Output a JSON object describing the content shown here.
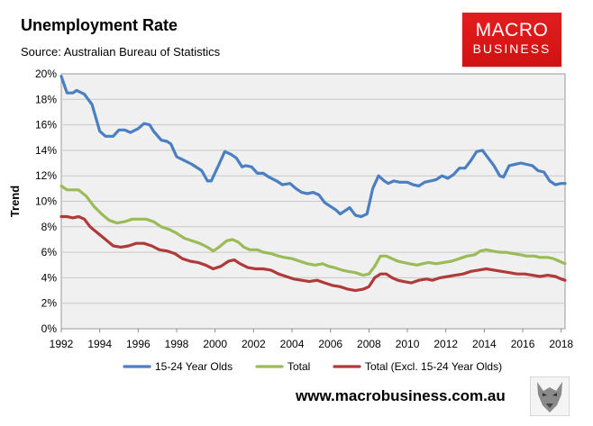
{
  "header": {
    "title": "Unemployment Rate",
    "source": "Source: Australian Bureau of Statistics"
  },
  "logo": {
    "line1": "MACRO",
    "line2": "BUSINESS"
  },
  "footer": {
    "url": "www.macrobusiness.com.au"
  },
  "colors": {
    "series_youth": "#4a7fc1",
    "series_total": "#9bbb59",
    "series_excl": "#b03a3a",
    "plot_bg": "#f0f0f0",
    "logo_red": "#e31d1d"
  },
  "chart_data": {
    "type": "line",
    "title": "Unemployment Rate",
    "xlabel": "",
    "ylabel": "Trend",
    "xlim": [
      1992,
      2018.2
    ],
    "ylim": [
      0,
      20
    ],
    "x_ticks": [
      "1992",
      "1994",
      "1996",
      "1998",
      "2000",
      "2002",
      "2004",
      "2006",
      "2008",
      "2010",
      "2012",
      "2014",
      "2016",
      "2018"
    ],
    "y_ticks": [
      "0%",
      "2%",
      "4%",
      "6%",
      "8%",
      "10%",
      "12%",
      "14%",
      "16%",
      "18%",
      "20%"
    ],
    "grid": true,
    "legend_position": "bottom",
    "series": [
      {
        "name": "15-24 Year Olds",
        "color_key": "series_youth",
        "points": [
          [
            1992,
            19.8
          ],
          [
            1992.3,
            18.5
          ],
          [
            1992.6,
            18.5
          ],
          [
            1992.8,
            18.7
          ],
          [
            1993.2,
            18.4
          ],
          [
            1993.6,
            17.6
          ],
          [
            1994.0,
            15.5
          ],
          [
            1994.3,
            15.1
          ],
          [
            1994.7,
            15.1
          ],
          [
            1995.0,
            15.6
          ],
          [
            1995.3,
            15.6
          ],
          [
            1995.6,
            15.4
          ],
          [
            1996.0,
            15.7
          ],
          [
            1996.3,
            16.1
          ],
          [
            1996.6,
            16.0
          ],
          [
            1996.8,
            15.5
          ],
          [
            1997.2,
            14.8
          ],
          [
            1997.5,
            14.7
          ],
          [
            1997.7,
            14.5
          ],
          [
            1998.0,
            13.5
          ],
          [
            1998.4,
            13.2
          ],
          [
            1998.8,
            12.9
          ],
          [
            1999.3,
            12.4
          ],
          [
            1999.6,
            11.6
          ],
          [
            1999.8,
            11.6
          ],
          [
            2000.2,
            12.9
          ],
          [
            2000.5,
            13.9
          ],
          [
            2000.8,
            13.7
          ],
          [
            2001.1,
            13.4
          ],
          [
            2001.4,
            12.7
          ],
          [
            2001.6,
            12.8
          ],
          [
            2001.9,
            12.7
          ],
          [
            2002.2,
            12.2
          ],
          [
            2002.5,
            12.2
          ],
          [
            2002.8,
            11.9
          ],
          [
            2003.2,
            11.6
          ],
          [
            2003.5,
            11.3
          ],
          [
            2003.9,
            11.4
          ],
          [
            2004.2,
            11.0
          ],
          [
            2004.5,
            10.7
          ],
          [
            2004.8,
            10.6
          ],
          [
            2005.1,
            10.7
          ],
          [
            2005.4,
            10.5
          ],
          [
            2005.7,
            9.9
          ],
          [
            2006.0,
            9.6
          ],
          [
            2006.3,
            9.3
          ],
          [
            2006.5,
            9.0
          ],
          [
            2006.8,
            9.3
          ],
          [
            2007.0,
            9.5
          ],
          [
            2007.3,
            8.9
          ],
          [
            2007.6,
            8.8
          ],
          [
            2007.9,
            9.0
          ],
          [
            2008.2,
            11.0
          ],
          [
            2008.5,
            12.0
          ],
          [
            2008.8,
            11.6
          ],
          [
            2009.0,
            11.4
          ],
          [
            2009.3,
            11.6
          ],
          [
            2009.6,
            11.5
          ],
          [
            2010.0,
            11.5
          ],
          [
            2010.3,
            11.3
          ],
          [
            2010.6,
            11.2
          ],
          [
            2010.9,
            11.5
          ],
          [
            2011.2,
            11.6
          ],
          [
            2011.5,
            11.7
          ],
          [
            2011.8,
            12.0
          ],
          [
            2012.1,
            11.8
          ],
          [
            2012.4,
            12.1
          ],
          [
            2012.7,
            12.6
          ],
          [
            2013.0,
            12.6
          ],
          [
            2013.3,
            13.2
          ],
          [
            2013.6,
            13.9
          ],
          [
            2013.9,
            14.0
          ],
          [
            2014.2,
            13.4
          ],
          [
            2014.5,
            12.8
          ],
          [
            2014.8,
            12.0
          ],
          [
            2015.0,
            11.9
          ],
          [
            2015.3,
            12.8
          ],
          [
            2015.6,
            12.9
          ],
          [
            2015.9,
            13.0
          ],
          [
            2016.2,
            12.9
          ],
          [
            2016.5,
            12.8
          ],
          [
            2016.8,
            12.4
          ],
          [
            2017.1,
            12.3
          ],
          [
            2017.4,
            11.6
          ],
          [
            2017.7,
            11.3
          ],
          [
            2018.0,
            11.4
          ],
          [
            2018.2,
            11.4
          ]
        ]
      },
      {
        "name": "Total",
        "color_key": "series_total",
        "points": [
          [
            1992,
            11.2
          ],
          [
            1992.3,
            10.9
          ],
          [
            1992.6,
            10.9
          ],
          [
            1992.9,
            10.9
          ],
          [
            1993.3,
            10.4
          ],
          [
            1993.7,
            9.6
          ],
          [
            1994.1,
            9.0
          ],
          [
            1994.5,
            8.5
          ],
          [
            1994.9,
            8.3
          ],
          [
            1995.3,
            8.4
          ],
          [
            1995.7,
            8.6
          ],
          [
            1996.0,
            8.6
          ],
          [
            1996.4,
            8.6
          ],
          [
            1996.8,
            8.4
          ],
          [
            1997.2,
            8.0
          ],
          [
            1997.6,
            7.8
          ],
          [
            1998.0,
            7.5
          ],
          [
            1998.4,
            7.1
          ],
          [
            1998.8,
            6.9
          ],
          [
            1999.2,
            6.7
          ],
          [
            1999.6,
            6.4
          ],
          [
            1999.9,
            6.1
          ],
          [
            2000.2,
            6.4
          ],
          [
            2000.6,
            6.9
          ],
          [
            2000.9,
            7.0
          ],
          [
            2001.2,
            6.8
          ],
          [
            2001.5,
            6.4
          ],
          [
            2001.8,
            6.2
          ],
          [
            2002.2,
            6.2
          ],
          [
            2002.5,
            6.0
          ],
          [
            2002.9,
            5.9
          ],
          [
            2003.3,
            5.7
          ],
          [
            2003.6,
            5.6
          ],
          [
            2004.0,
            5.5
          ],
          [
            2004.4,
            5.3
          ],
          [
            2004.8,
            5.1
          ],
          [
            2005.2,
            5.0
          ],
          [
            2005.6,
            5.1
          ],
          [
            2005.9,
            4.9
          ],
          [
            2006.2,
            4.8
          ],
          [
            2006.6,
            4.6
          ],
          [
            2006.9,
            4.5
          ],
          [
            2007.3,
            4.4
          ],
          [
            2007.7,
            4.2
          ],
          [
            2008.0,
            4.3
          ],
          [
            2008.3,
            4.9
          ],
          [
            2008.6,
            5.7
          ],
          [
            2008.9,
            5.7
          ],
          [
            2009.2,
            5.5
          ],
          [
            2009.5,
            5.3
          ],
          [
            2009.8,
            5.2
          ],
          [
            2010.1,
            5.1
          ],
          [
            2010.5,
            5.0
          ],
          [
            2010.8,
            5.1
          ],
          [
            2011.1,
            5.2
          ],
          [
            2011.5,
            5.1
          ],
          [
            2011.9,
            5.2
          ],
          [
            2012.3,
            5.3
          ],
          [
            2012.7,
            5.5
          ],
          [
            2013.1,
            5.7
          ],
          [
            2013.5,
            5.8
          ],
          [
            2013.8,
            6.1
          ],
          [
            2014.1,
            6.2
          ],
          [
            2014.4,
            6.1
          ],
          [
            2014.8,
            6.0
          ],
          [
            2015.1,
            6.0
          ],
          [
            2015.5,
            5.9
          ],
          [
            2015.9,
            5.8
          ],
          [
            2016.2,
            5.7
          ],
          [
            2016.6,
            5.7
          ],
          [
            2016.9,
            5.6
          ],
          [
            2017.3,
            5.6
          ],
          [
            2017.6,
            5.5
          ],
          [
            2017.9,
            5.3
          ],
          [
            2018.2,
            5.1
          ]
        ]
      },
      {
        "name": "Total (Excl. 15-24 Year Olds)",
        "color_key": "series_excl",
        "points": [
          [
            1992,
            8.8
          ],
          [
            1992.3,
            8.8
          ],
          [
            1992.6,
            8.7
          ],
          [
            1992.9,
            8.8
          ],
          [
            1993.2,
            8.6
          ],
          [
            1993.5,
            8.0
          ],
          [
            1993.9,
            7.5
          ],
          [
            1994.3,
            7.0
          ],
          [
            1994.7,
            6.5
          ],
          [
            1995.1,
            6.4
          ],
          [
            1995.5,
            6.5
          ],
          [
            1995.9,
            6.7
          ],
          [
            1996.3,
            6.7
          ],
          [
            1996.7,
            6.5
          ],
          [
            1997.1,
            6.2
          ],
          [
            1997.5,
            6.1
          ],
          [
            1997.9,
            5.9
          ],
          [
            1998.3,
            5.5
          ],
          [
            1998.7,
            5.3
          ],
          [
            1999.1,
            5.2
          ],
          [
            1999.5,
            5.0
          ],
          [
            1999.9,
            4.7
          ],
          [
            2000.3,
            4.9
          ],
          [
            2000.7,
            5.3
          ],
          [
            2001.0,
            5.4
          ],
          [
            2001.3,
            5.1
          ],
          [
            2001.7,
            4.8
          ],
          [
            2002.1,
            4.7
          ],
          [
            2002.5,
            4.7
          ],
          [
            2002.9,
            4.6
          ],
          [
            2003.3,
            4.3
          ],
          [
            2003.7,
            4.1
          ],
          [
            2004.1,
            3.9
          ],
          [
            2004.5,
            3.8
          ],
          [
            2004.9,
            3.7
          ],
          [
            2005.3,
            3.8
          ],
          [
            2005.7,
            3.6
          ],
          [
            2006.1,
            3.4
          ],
          [
            2006.5,
            3.3
          ],
          [
            2006.9,
            3.1
          ],
          [
            2007.3,
            3.0
          ],
          [
            2007.7,
            3.1
          ],
          [
            2008.0,
            3.3
          ],
          [
            2008.3,
            4.0
          ],
          [
            2008.6,
            4.3
          ],
          [
            2008.9,
            4.3
          ],
          [
            2009.2,
            4.0
          ],
          [
            2009.5,
            3.8
          ],
          [
            2009.8,
            3.7
          ],
          [
            2010.2,
            3.6
          ],
          [
            2010.6,
            3.8
          ],
          [
            2011.0,
            3.9
          ],
          [
            2011.3,
            3.8
          ],
          [
            2011.7,
            4.0
          ],
          [
            2012.1,
            4.1
          ],
          [
            2012.5,
            4.2
          ],
          [
            2012.9,
            4.3
          ],
          [
            2013.3,
            4.5
          ],
          [
            2013.7,
            4.6
          ],
          [
            2014.1,
            4.7
          ],
          [
            2014.5,
            4.6
          ],
          [
            2014.9,
            4.5
          ],
          [
            2015.3,
            4.4
          ],
          [
            2015.7,
            4.3
          ],
          [
            2016.1,
            4.3
          ],
          [
            2016.5,
            4.2
          ],
          [
            2016.9,
            4.1
          ],
          [
            2017.3,
            4.2
          ],
          [
            2017.7,
            4.1
          ],
          [
            2018.0,
            3.9
          ],
          [
            2018.2,
            3.8
          ]
        ]
      }
    ]
  }
}
